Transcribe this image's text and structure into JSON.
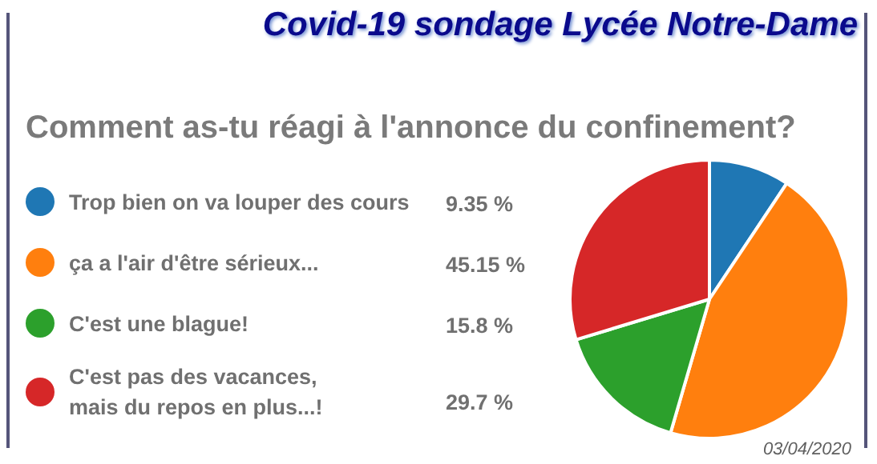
{
  "chart_data": {
    "type": "pie",
    "title": "Covid-19 sondage Lycée Notre-Dame",
    "subtitle": "Comment as-tu réagi à l'annonce du confinement?",
    "categories": [
      "Trop bien on va louper des cours",
      "ça a l'air d'être sérieux...",
      "C'est une blague!",
      "C'est pas des vacances,\nmais du repos en plus...!"
    ],
    "values": [
      9.35,
      45.15,
      15.8,
      29.7
    ],
    "value_labels": [
      "9.35 %",
      "45.15 %",
      "15.8 %",
      "29.7 %"
    ],
    "colors": [
      "#1f77b4",
      "#ff7f0e",
      "#2ca02c",
      "#d62728"
    ],
    "legend": "left",
    "annotations": [
      "03/04/2020"
    ]
  }
}
